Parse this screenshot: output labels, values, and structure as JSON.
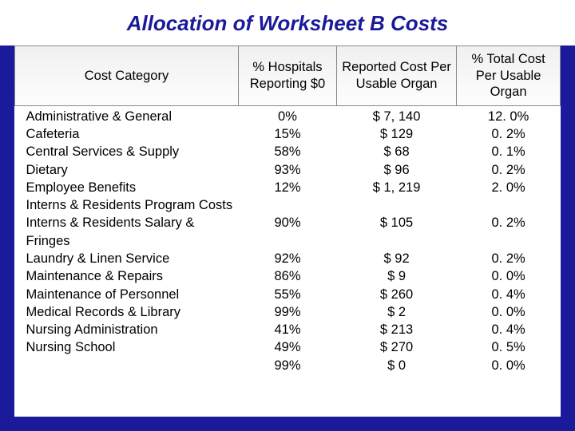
{
  "title": "Allocation of Worksheet B Costs",
  "columns": [
    "Cost Category",
    "% Hospitals Reporting $0",
    "Reported Cost Per Usable Organ",
    "% Total Cost Per Usable Organ"
  ],
  "rows": [
    {
      "category": "Administrative & General",
      "pct_zero": "0%",
      "cost": "$  7, 140",
      "pct_total": "12. 0%"
    },
    {
      "category": "Cafeteria",
      "pct_zero": "15%",
      "cost": "$  129",
      "pct_total": "0. 2%"
    },
    {
      "category": "Central Services & Supply",
      "pct_zero": "58%",
      "cost": "$  68",
      "pct_total": "0. 1%"
    },
    {
      "category": "Dietary",
      "pct_zero": "93%",
      "cost": "$  96",
      "pct_total": "0. 2%"
    },
    {
      "category": "Employee Benefits",
      "pct_zero": "12%",
      "cost": "$  1, 219",
      "pct_total": "2. 0%"
    },
    {
      "category": "Interns & Residents Program Costs",
      "pct_zero": "90%",
      "cost": "$  105",
      "pct_total": "0. 2%"
    },
    {
      "category": "Interns & Residents Salary & Fringes",
      "pct_zero": "92%",
      "cost": "$  92",
      "pct_total": "0. 2%"
    },
    {
      "category": "Laundry & Linen Service",
      "pct_zero": "86%",
      "cost": "$  9",
      "pct_total": "0. 0%"
    },
    {
      "category": "Maintenance & Repairs",
      "pct_zero": "55%",
      "cost": "$  260",
      "pct_total": "0. 4%"
    },
    {
      "category": "Maintenance of Personnel",
      "pct_zero": "99%",
      "cost": "$  2",
      "pct_total": "0. 0%"
    },
    {
      "category": "Medical Records & Library",
      "pct_zero": "41%",
      "cost": "$  213",
      "pct_total": "0. 4%"
    },
    {
      "category": "Nursing Administration",
      "pct_zero": "49%",
      "cost": "$  270",
      "pct_total": "0. 5%"
    },
    {
      "category": "Nursing School",
      "pct_zero": "99%",
      "cost": "$  0",
      "pct_total": "0. 0%"
    }
  ],
  "multiline_rows": [
    5,
    6
  ],
  "styling": {
    "slide_bg": "#1a1a9a",
    "table_bg_top": "#f0f0f0",
    "table_bg_bottom": "#ffffff",
    "title_color": "#1a1a9a",
    "title_fontsize": 26,
    "body_fontsize": 16.5,
    "border_color": "#888888",
    "text_color": "#000000",
    "font_family": "Arial"
  }
}
